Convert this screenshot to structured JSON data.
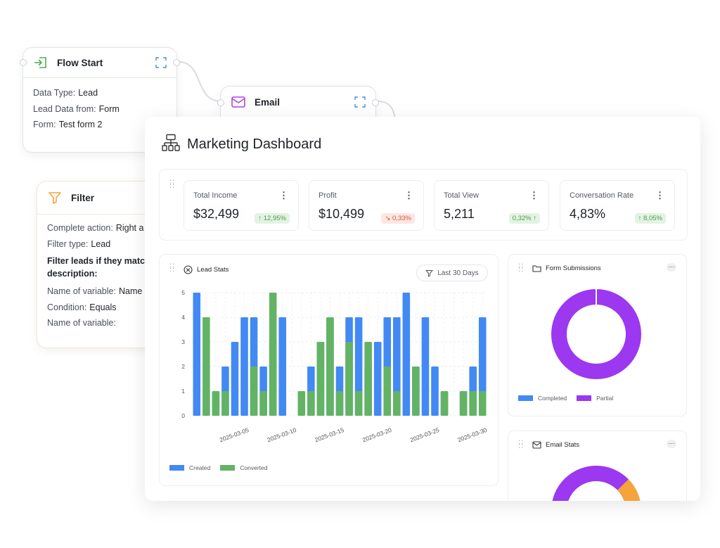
{
  "flow_start": {
    "title": "Flow Start",
    "rows": [
      {
        "label": "Data Type:",
        "value": "Lead"
      },
      {
        "label": "Lead Data from:",
        "value": "Form"
      },
      {
        "label": "Form:",
        "value": "Test form 2"
      }
    ]
  },
  "email_node": {
    "title": "Email"
  },
  "filter_node": {
    "title": "Filter",
    "complete_action": {
      "label": "Complete action:",
      "value": "Right a"
    },
    "filter_type": {
      "label": "Filter type:",
      "value": "Lead"
    },
    "description": "Filter leads if they match description:",
    "variable1": {
      "label": "Name of variable:",
      "value": "Name"
    },
    "condition": {
      "label": "Condition:",
      "value": "Equals"
    },
    "variable2": {
      "label": "Name of variable:",
      "value": ""
    }
  },
  "dashboard": {
    "title": "Marketing Dashboard",
    "stats": [
      {
        "label": "Total Income",
        "value": "$32,499",
        "change": "↑ 12,95%",
        "trend": "up"
      },
      {
        "label": "Profit",
        "value": "$10,499",
        "change": "↘ 0,33%",
        "trend": "down"
      },
      {
        "label": "Total View",
        "value": "5,211",
        "change": "0,32% ↑",
        "trend": "up"
      },
      {
        "label": "Conversation Rate",
        "value": "4,83%",
        "change": "↑ 8,05%",
        "trend": "up"
      }
    ],
    "lead_stats": {
      "title": "Lead Stats",
      "range_label": "Last 30 Days",
      "legend": [
        "Created",
        "Converted"
      ]
    },
    "form_submissions": {
      "title": "Form Submissions",
      "legend": [
        "Completed",
        "Partial"
      ]
    },
    "email_stats": {
      "title": "Email Stats"
    }
  },
  "colors": {
    "created": "#4289f4",
    "converted": "#63b365",
    "completed": "#4289f4",
    "partial": "#9b38f0",
    "email_orange": "#f5a33a"
  },
  "chart_data": [
    {
      "type": "bar",
      "title": "Lead Stats",
      "x_tick_labels": [
        "2025-03-05",
        "2025-03-10",
        "2025-03-15",
        "2025-03-20",
        "2025-03-25",
        "2025-03-30"
      ],
      "ylim": [
        0,
        5
      ],
      "yticks": [
        0,
        1,
        2,
        3,
        4,
        5
      ],
      "grid": true,
      "legend_position": "bottom-left",
      "series": [
        {
          "name": "Created",
          "values": [
            5,
            1,
            1,
            2,
            3,
            4,
            4,
            2,
            3,
            4,
            null,
            0,
            2,
            3,
            4,
            2,
            4,
            4,
            2,
            3,
            4,
            4,
            5,
            2,
            4,
            2,
            1,
            null,
            1,
            2,
            4
          ]
        },
        {
          "name": "Converted",
          "values": [
            0,
            4,
            1,
            1,
            0,
            0,
            2,
            1,
            5,
            0,
            null,
            1,
            1,
            3,
            4,
            1,
            3,
            1,
            3,
            0,
            2,
            1,
            0,
            2,
            0,
            0,
            1,
            null,
            1,
            1,
            1
          ]
        }
      ]
    },
    {
      "type": "pie",
      "title": "Form Submissions",
      "donut": true,
      "labels": [
        "Completed",
        "Partial"
      ],
      "values": [
        0,
        100
      ]
    }
  ]
}
